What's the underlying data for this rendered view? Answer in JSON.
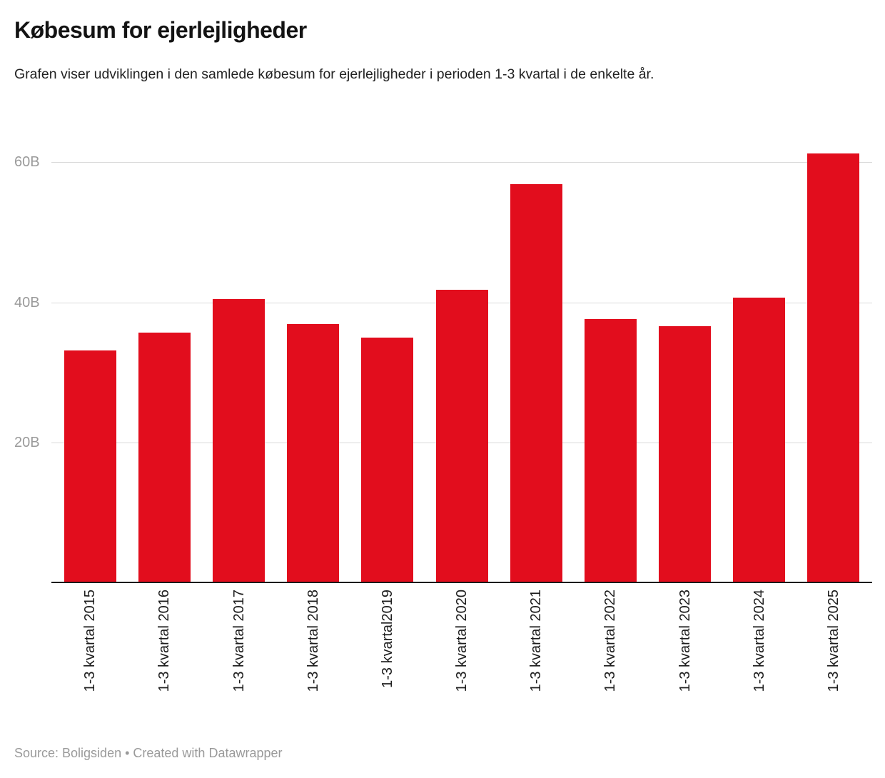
{
  "header": {
    "title": "Købesum for ejerlejligheder",
    "description": "Grafen viser udviklingen i den samlede købesum for ejerlejligheder i perioden 1-3 kvartal i de enkelte år."
  },
  "chart_data": {
    "type": "bar",
    "title": "Købesum for ejerlejligheder",
    "subtitle": "Grafen viser udviklingen i den samlede købesum for ejerlejligheder i perioden 1-3 kvartal i de enkelte år.",
    "categories": [
      "1-3 kvartal 2015",
      "1-3 kvartal 2016",
      "1-3 kvartal 2017",
      "1-3 kvartal 2018",
      "1-3 kvartal2019",
      "1-3 kvartal 2020",
      "1-3 kvartal 2021",
      "1-3 kvartal 2022",
      "1-3 kvartal 2023",
      "1-3 kvartal 2024",
      "1-3 kvartal 2025"
    ],
    "values": [
      33.1,
      35.7,
      40.5,
      36.9,
      35.0,
      41.8,
      56.9,
      37.6,
      36.6,
      40.7,
      61.3
    ],
    "unit": "B",
    "xlabel": "",
    "ylabel": "",
    "ylim": [
      0,
      62
    ],
    "y_ticks": [
      {
        "label": "20B",
        "value": 20
      },
      {
        "label": "40B",
        "value": 40
      },
      {
        "label": "60B",
        "value": 60
      }
    ],
    "grid": "horizontal",
    "legend_position": "none",
    "bar_color": "#e20d1d"
  },
  "footer": {
    "text": "Source: Boligsiden • Created with Datawrapper"
  }
}
